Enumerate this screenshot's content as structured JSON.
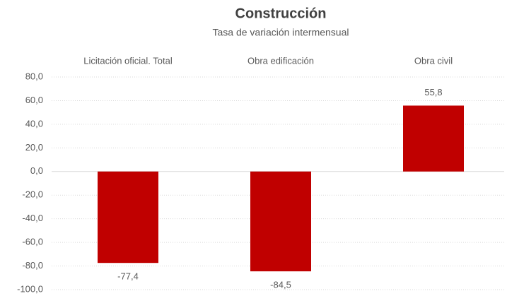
{
  "chart_data": {
    "type": "bar",
    "title": "Construcción",
    "subtitle": "Tasa de variación intermensual",
    "categories": [
      "Licitación oficial. Total",
      "Obra edificación",
      "Obra civil"
    ],
    "values": [
      -77.4,
      -84.5,
      55.8
    ],
    "value_labels": [
      "-77,4",
      "-84,5",
      "55,8"
    ],
    "color": "#c00000",
    "ylim": [
      -100,
      80
    ],
    "yticks": [
      {
        "value": -100,
        "label": "-100,0"
      },
      {
        "value": -80,
        "label": "-80,0"
      },
      {
        "value": -60,
        "label": "-60,0"
      },
      {
        "value": -40,
        "label": "-40,0"
      },
      {
        "value": -20,
        "label": "-20,0"
      },
      {
        "value": 0,
        "label": "0,0"
      },
      {
        "value": 20,
        "label": "20,0"
      },
      {
        "value": 40,
        "label": "40,0"
      },
      {
        "value": 60,
        "label": "60,0"
      },
      {
        "value": 80,
        "label": "80,0"
      }
    ],
    "grid": true
  }
}
